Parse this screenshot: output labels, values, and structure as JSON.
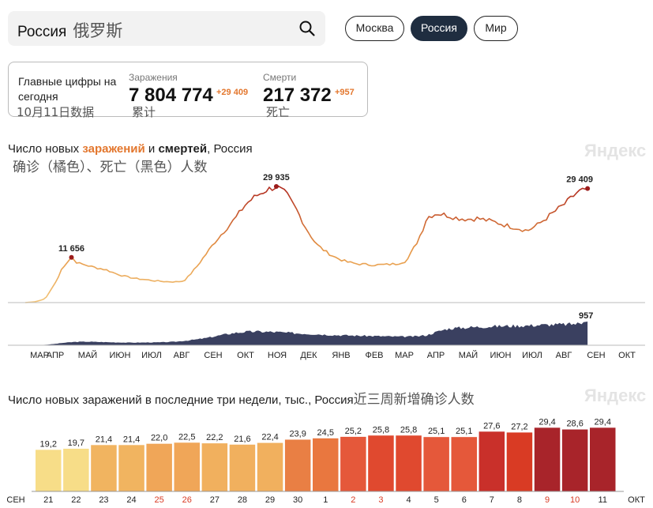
{
  "search": {
    "query": "Россия",
    "annotation": "俄罗斯"
  },
  "regions": [
    {
      "label": "Москва",
      "active": false
    },
    {
      "label": "Россия",
      "active": true
    },
    {
      "label": "Мир",
      "active": false
    }
  ],
  "summary": {
    "title": "Главные цифры на сегодня",
    "date_note": "10月11日数据",
    "infections": {
      "label": "Заражения",
      "value": "7 804 774",
      "delta": "+29 409",
      "note": "累计"
    },
    "deaths": {
      "label": "Смерти",
      "value": "217 372",
      "delta": "+957",
      "note": "死亡"
    }
  },
  "colors": {
    "infections_line": "#e3772e",
    "deaths_area": "#3a4060",
    "peak_marker": "#9b1c1c",
    "watermark": "#e4e4e4",
    "highlight_red": "#d93b24"
  },
  "chart1": {
    "title_pre": "Число новых ",
    "title_infections": "заражений",
    "title_mid": " и ",
    "title_deaths": "смертей",
    "title_post": ", Россия",
    "annotation": "确诊（橘色）、死亡（黑色）人数",
    "watermark": "Яндекс"
  },
  "chart2": {
    "title": "Число новых заражений в последние три недели, тыс., Россия",
    "annotation": "近三周新增确诊人数",
    "watermark": "Яндекс"
  },
  "chart_data": [
    {
      "type": "line",
      "title": "Число новых заражений и смертей, Россия",
      "series": [
        {
          "x": [
            0,
            0.5,
            1,
            1.3,
            1.6,
            1.8,
            2,
            2.3,
            2.6,
            3,
            3.5,
            4,
            4.5,
            5,
            5.5,
            6,
            6.5,
            7,
            7.5,
            7.8,
            8,
            8.5,
            9,
            9.5,
            10,
            10.5,
            11,
            11.5,
            12,
            12.5,
            13,
            13.5,
            14,
            14.5,
            15,
            15.5,
            16,
            16.5,
            17,
            17.5,
            18,
            18.5,
            19,
            19.5,
            19.8,
            20,
            20.5,
            21,
            21.5,
            22,
            22.5,
            23,
            23.5,
            24,
            24.5,
            25,
            25.5,
            26,
            26.5,
            27,
            27.5,
            28,
            28.5,
            29,
            29.5,
            30
          ],
          "values": [
            0,
            200,
            1000,
            3500,
            6000,
            8500,
            10000,
            11656,
            10200,
            9700,
            9000,
            8500,
            7500,
            6700,
            6200,
            5900,
            5600,
            5400,
            5350,
            5500,
            6000,
            9000,
            12500,
            16000,
            19000,
            22000,
            25500,
            27500,
            29000,
            29935,
            28000,
            24000,
            19000,
            15000,
            13000,
            11500,
            10500,
            10000,
            9800,
            9700,
            9800,
            10000,
            10800,
            15500,
            19000,
            22000,
            23000,
            22500,
            21800,
            21500,
            21700,
            21200,
            20600,
            19800,
            19200,
            18500,
            20000,
            22000,
            24000,
            26000,
            28500,
            29409,
            29409,
            29409,
            29409,
            29409
          ],
          "peaks": [
            {
              "label": "11 656",
              "value": 11656,
              "x": 2.3
            },
            {
              "label": "29 935",
              "value": 29935,
              "x": 12.5
            },
            {
              "label": "29 409",
              "value": 29409,
              "x": 28
            }
          ]
        },
        {
          "x": [
            0,
            0.5,
            1,
            1.5,
            2,
            2.5,
            3,
            3.5,
            4,
            4.5,
            5,
            5.5,
            6,
            6.5,
            7,
            7.5,
            8,
            8.5,
            9,
            9.5,
            10,
            10.5,
            11,
            11.5,
            12,
            12.5,
            13,
            13.5,
            14,
            14.5,
            15,
            15.5,
            16,
            16.5,
            17,
            17.5,
            18,
            18.5,
            19,
            19.5,
            20,
            20.5,
            21,
            21.5,
            22,
            22.5,
            23,
            23.5,
            24,
            24.5,
            25,
            25.5,
            26,
            26.5,
            27,
            27.5,
            28
          ],
          "values": [
            0,
            5,
            20,
            60,
            110,
            140,
            150,
            140,
            130,
            120,
            110,
            110,
            115,
            120,
            130,
            150,
            190,
            240,
            300,
            380,
            460,
            520,
            560,
            570,
            560,
            550,
            520,
            500,
            480,
            460,
            440,
            420,
            410,
            400,
            390,
            380,
            370,
            360,
            360,
            370,
            420,
            560,
            680,
            720,
            740,
            760,
            780,
            790,
            800,
            810,
            820,
            840,
            850,
            860,
            870,
            900,
            957
          ],
          "peaks": [
            {
              "label": "957",
              "value": 957,
              "x": 28
            }
          ]
        }
      ],
      "x_ticks": [
        "МАР",
        "АПР",
        "МАЙ",
        "ИЮН",
        "ИЮЛ",
        "АВГ",
        "СЕН",
        "ОКТ",
        "НОЯ",
        "ДЕК",
        "ЯНВ",
        "ФЕВ",
        "МАР",
        "АПР",
        "МАЙ",
        "ИЮН",
        "ИЮЛ",
        "АВГ",
        "СЕН",
        "ОКТ"
      ],
      "legend": "none",
      "grid": false
    },
    {
      "type": "bar",
      "title": "Число новых заражений в последние три недели, тыс., Россия",
      "categories": [
        "21",
        "22",
        "23",
        "24",
        "25",
        "26",
        "27",
        "28",
        "29",
        "30",
        "1",
        "2",
        "3",
        "4",
        "5",
        "6",
        "7",
        "8",
        "9",
        "10",
        "11"
      ],
      "values": [
        19.2,
        19.7,
        21.4,
        21.4,
        22.0,
        22.5,
        22.2,
        21.6,
        22.4,
        23.9,
        24.5,
        25.2,
        25.8,
        25.8,
        25.1,
        25.1,
        27.6,
        27.2,
        29.4,
        28.6,
        29.4
      ],
      "value_labels": [
        "19,2",
        "19,7",
        "21,4",
        "21,4",
        "22,0",
        "22,5",
        "22,2",
        "21,6",
        "22,4",
        "23,9",
        "24,5",
        "25,2",
        "25,8",
        "25,8",
        "25,1",
        "25,1",
        "27,6",
        "27,2",
        "29,4",
        "28,6",
        "29,4"
      ],
      "weekend": [
        false,
        false,
        false,
        false,
        true,
        true,
        false,
        false,
        false,
        false,
        false,
        true,
        true,
        false,
        false,
        false,
        false,
        false,
        true,
        true,
        false
      ],
      "month_left": "СЕН",
      "month_right": "ОКТ",
      "ylim": [
        0,
        31
      ]
    }
  ]
}
